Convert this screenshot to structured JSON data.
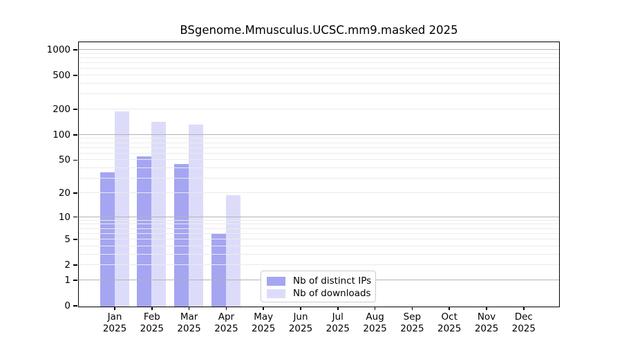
{
  "chart_data": {
    "type": "bar",
    "title": "BSgenome.Mmusculus.UCSC.mm9.masked 2025",
    "categories": [
      "Jan",
      "Feb",
      "Mar",
      "Apr",
      "May",
      "Jun",
      "Jul",
      "Aug",
      "Sep",
      "Oct",
      "Nov",
      "Dec"
    ],
    "category_year": "2025",
    "series": [
      {
        "name": "Nb of distinct IPs",
        "color": "#a5a5f2",
        "values": [
          36,
          56,
          45,
          6,
          0,
          0,
          0,
          0,
          0,
          0,
          0,
          0
        ]
      },
      {
        "name": "Nb of downloads",
        "color": "#dcdcfa",
        "values": [
          190,
          145,
          134,
          19,
          0,
          0,
          0,
          0,
          0,
          0,
          0,
          0
        ]
      }
    ],
    "y_scale": "log1p",
    "ylim": [
      0,
      1000
    ],
    "y_tick_labels": [
      "0",
      "1",
      "2",
      "5",
      "10",
      "20",
      "50",
      "100",
      "200",
      "500",
      "1000"
    ],
    "y_ticks": [
      0,
      1,
      2,
      5,
      10,
      20,
      50,
      100,
      200,
      500,
      1000
    ],
    "grid": {
      "major_at": [
        1,
        10,
        100,
        1000
      ],
      "minor": "2-9 per decade",
      "orientation": "horizontal"
    },
    "legend": {
      "position": "inside-bottom-center",
      "entries": [
        "Nb of distinct IPs",
        "Nb of downloads"
      ]
    },
    "colors": {
      "bar_dark": "#a5a5f2",
      "bar_light": "#dcdcfa",
      "grid_major": "#b3b3b3",
      "grid_minor": "#ebebeb",
      "axis": "#000000",
      "background": "#ffffff"
    }
  }
}
